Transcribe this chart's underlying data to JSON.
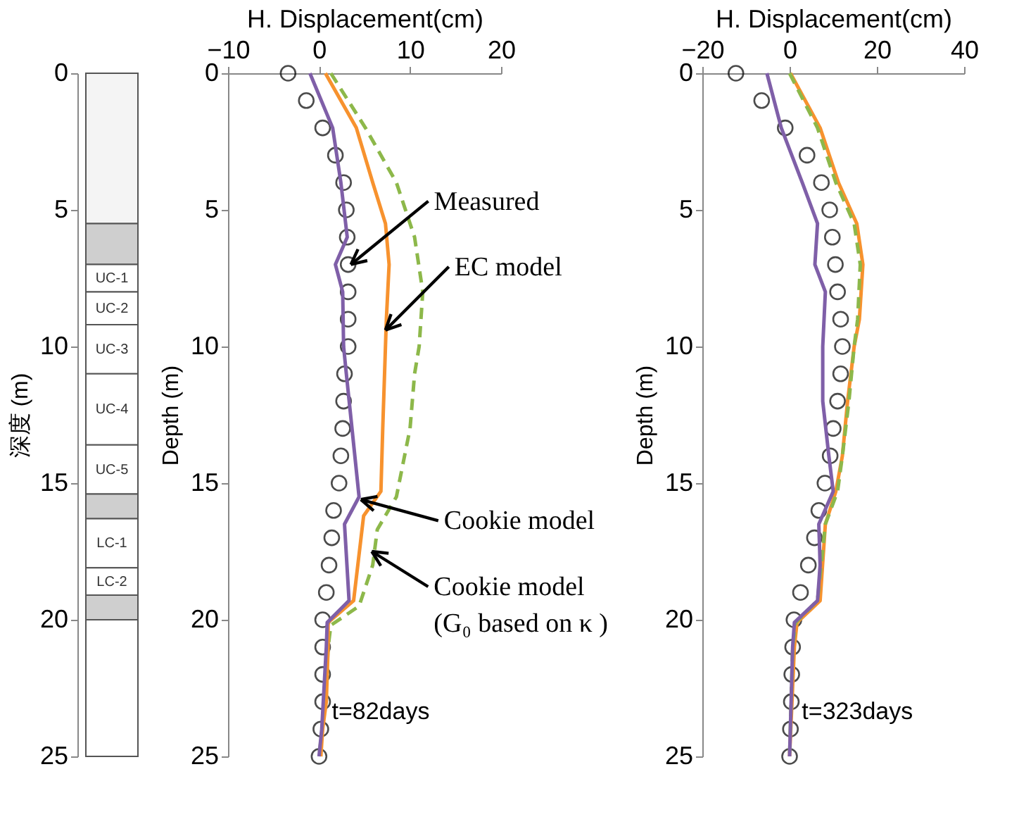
{
  "chart_data": [
    {
      "type": "bar",
      "stacked": true,
      "ylabel": "深度 (m)",
      "ylim": [
        25,
        0
      ],
      "yticks": [
        0,
        5,
        10,
        15,
        20,
        25
      ],
      "grid": false,
      "categories": [
        null
      ],
      "series": [
        {
          "color": "#f4f4f4",
          "values": [
            5.5
          ]
        },
        {
          "color": "#cfcfcf",
          "values": [
            1.5
          ]
        },
        {
          "name": "UC-1",
          "color": "#ffffff",
          "values": [
            1.0
          ]
        },
        {
          "name": "UC-2",
          "color": "#ffffff",
          "values": [
            1.2
          ]
        },
        {
          "name": "UC-3",
          "color": "#ffffff",
          "values": [
            1.8
          ]
        },
        {
          "name": "UC-4",
          "color": "#ffffff",
          "values": [
            2.6
          ]
        },
        {
          "name": "UC-5",
          "color": "#ffffff",
          "values": [
            1.8
          ]
        },
        {
          "color": "#cfcfcf",
          "values": [
            0.9
          ]
        },
        {
          "name": "LC-1",
          "color": "#ffffff",
          "values": [
            1.8
          ]
        },
        {
          "name": "LC-2",
          "color": "#ffffff",
          "values": [
            1.0
          ]
        },
        {
          "color": "#cfcfcf",
          "values": [
            0.9
          ]
        },
        {
          "color": "#ffffff",
          "values": [
            5.0
          ]
        }
      ]
    },
    {
      "type": "line",
      "xlabel": "H. Displacement(cm)",
      "ylabel": "Depth (m)",
      "xlim": [
        -10,
        20
      ],
      "xticks": [
        -10,
        0,
        10,
        20
      ],
      "ylim": [
        25,
        0
      ],
      "yticks": [
        0,
        5,
        10,
        15,
        20,
        25
      ],
      "grid": false,
      "series": [
        {
          "type": "scatter",
          "marker": "circle",
          "color": "#000000",
          "x": [
            -3.4,
            -1.4,
            0.4,
            1.8,
            2.7,
            3.0,
            3.1,
            3.2,
            3.2,
            3.2,
            3.2,
            2.8,
            2.7,
            2.6,
            2.4,
            2.2,
            1.6,
            1.4,
            1.1,
            0.8,
            0.4,
            0.4,
            0.4,
            0.4,
            0.2,
            0
          ],
          "values": [
            0,
            1,
            2,
            3,
            4,
            5,
            6,
            7,
            8,
            9,
            10,
            11,
            12,
            13,
            14,
            15,
            16,
            17,
            18,
            19,
            20,
            21,
            22,
            23,
            24,
            25
          ]
        },
        {
          "type": "line",
          "line_style": "dashed",
          "color": "#8db84a",
          "x": [
            1.3,
            5.1,
            8.5,
            10.5,
            11.4,
            11.0,
            10.5,
            10.0,
            8.5,
            6.4,
            5.9,
            4.4,
            1.3,
            1.0,
            0.7,
            0
          ],
          "values": [
            0,
            2,
            4,
            6,
            8,
            10,
            11,
            13,
            15.5,
            16.7,
            18,
            19.5,
            20.2,
            21,
            23,
            25
          ]
        },
        {
          "type": "line",
          "line_style": "solid",
          "color": "#f7922e",
          "x": [
            0.7,
            4.1,
            5.9,
            7.3,
            7.7,
            7.4,
            7.2,
            7.0,
            6.8,
            4.9,
            3.8,
            1.0,
            1.0,
            0.8,
            0.4,
            0.2
          ],
          "values": [
            0,
            2,
            4,
            5.5,
            7,
            9,
            11,
            13,
            15.3,
            16.2,
            19.3,
            20.1,
            21,
            23,
            24,
            25
          ]
        },
        {
          "type": "line",
          "line_style": "solid",
          "color": "#7f5fa8",
          "x": [
            -1.0,
            1.5,
            2.4,
            3.1,
            1.8,
            2.6,
            2.7,
            3.0,
            4.4,
            2.8,
            3.3,
            0.9,
            0.8,
            0.3,
            0
          ],
          "values": [
            0,
            2,
            4,
            6,
            7,
            8,
            10,
            11,
            15.5,
            16.5,
            19.3,
            20.1,
            21,
            24,
            25
          ]
        }
      ],
      "annotations": [
        {
          "text": "Measured",
          "x": 3.5,
          "y": 7
        },
        {
          "text": "EC model",
          "x": 7.3,
          "y": 9.4
        },
        {
          "text": "Cookie model",
          "x": 4.6,
          "y": 15.6
        },
        {
          "text": "Cookie model\n(G₀ based on  κ )",
          "x": 5.8,
          "y": 17.5
        },
        "t=82days"
      ]
    },
    {
      "type": "line",
      "xlabel": "H. Displacement(cm)",
      "ylabel": "Depth (m)",
      "xlim": [
        -20,
        40
      ],
      "xticks": [
        -20,
        0,
        20,
        40
      ],
      "ylim": [
        25,
        0
      ],
      "yticks": [
        0,
        5,
        10,
        15,
        20,
        25
      ],
      "grid": false,
      "series": [
        {
          "type": "scatter",
          "marker": "circle",
          "color": "#000000",
          "x": [
            -12.3,
            -6.4,
            -1.0,
            4.0,
            7.3,
            9.2,
            9.8,
            10.5,
            11.0,
            11.7,
            12.1,
            11.7,
            11.0,
            10.0,
            9.3,
            8.1,
            6.7,
            5.7,
            4.3,
            2.5,
            1.0,
            0.7,
            0.5,
            0.4,
            0.2,
            0
          ],
          "values": [
            0,
            1,
            2,
            3,
            4,
            5,
            6,
            7,
            8,
            9,
            10,
            11,
            12,
            13,
            14,
            15,
            16,
            17,
            18,
            19,
            20,
            21,
            22,
            23,
            24,
            25
          ]
        },
        {
          "type": "line",
          "line_style": "solid",
          "color": "#f7922e",
          "x": [
            0.2,
            7.0,
            11.2,
            15.4,
            16.8,
            16.0,
            14.8,
            13.3,
            12.1,
            10.6,
            8.2,
            7.0,
            1.7,
            1.1,
            0
          ],
          "values": [
            0,
            2,
            4,
            5.5,
            7,
            9,
            10,
            12,
            14,
            15.3,
            16.5,
            19.3,
            20.1,
            21,
            25
          ]
        },
        {
          "type": "line",
          "line_style": "dashed",
          "color": "#8db84a",
          "x": [
            0,
            6.4,
            10.6,
            14.8,
            16.2,
            15.6,
            14.8,
            13.6,
            12.1,
            11.0,
            8.2,
            6.4,
            1.4,
            0.7,
            0
          ],
          "values": [
            0,
            2,
            4,
            5.5,
            7,
            9,
            10,
            12,
            14,
            15.3,
            16.5,
            19.3,
            20.1,
            21,
            25
          ]
        },
        {
          "type": "line",
          "line_style": "solid",
          "color": "#7f5fa8",
          "x": [
            -5.2,
            -1.9,
            2.9,
            6.4,
            5.8,
            8.2,
            7.6,
            7.6,
            9.0,
            10.0,
            6.7,
            7.0,
            6.4,
            1.1,
            0.7,
            0
          ],
          "values": [
            0,
            2,
            4,
            5.5,
            7,
            8,
            10,
            12,
            14,
            15.3,
            16.5,
            18,
            19.3,
            20.1,
            21,
            25
          ]
        }
      ],
      "annotations": [
        "t=323days"
      ]
    }
  ]
}
